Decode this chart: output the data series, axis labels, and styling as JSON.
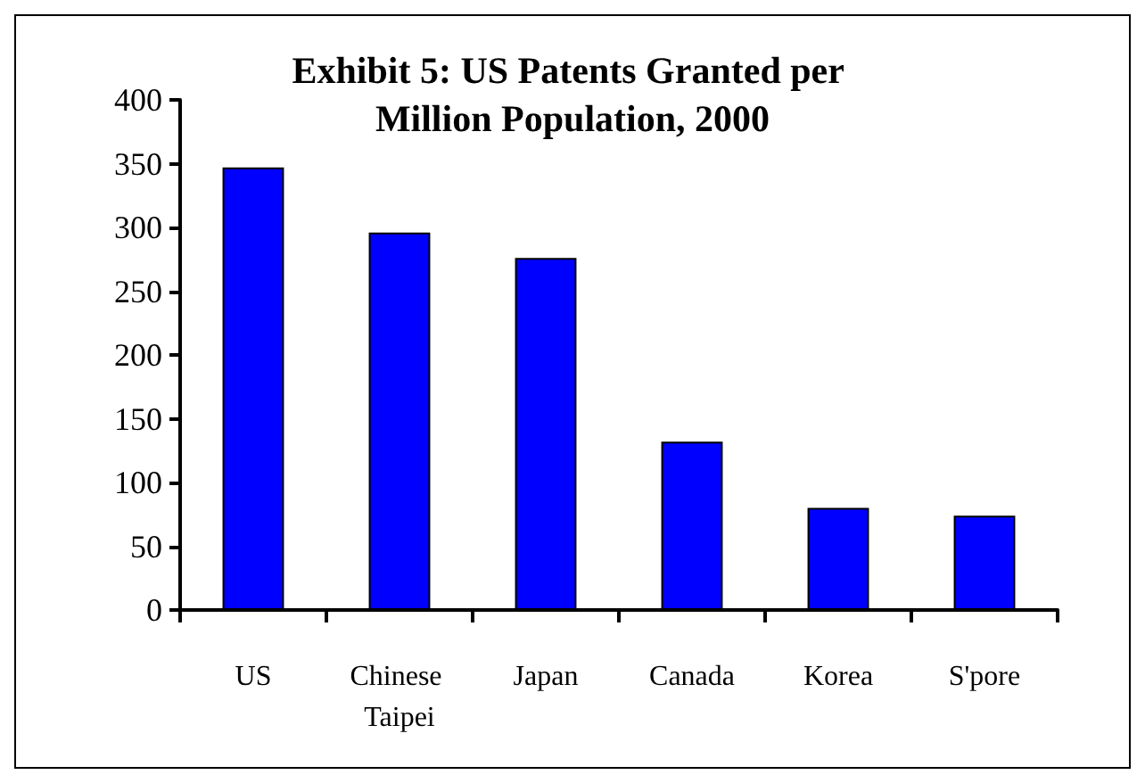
{
  "chart_data": {
    "type": "bar",
    "title": "Exhibit 5: US Patents Granted per Million Population, 2000",
    "categories": [
      "US",
      "Chinese Taipei",
      "Japan",
      "Canada",
      "Korea",
      "S'pore"
    ],
    "values": [
      347,
      296,
      276,
      132,
      80,
      74
    ],
    "color": "#0000ff",
    "ylim": [
      0,
      400
    ],
    "yticks": [
      0,
      50,
      100,
      150,
      200,
      250,
      300,
      350,
      400
    ],
    "grid": false
  }
}
